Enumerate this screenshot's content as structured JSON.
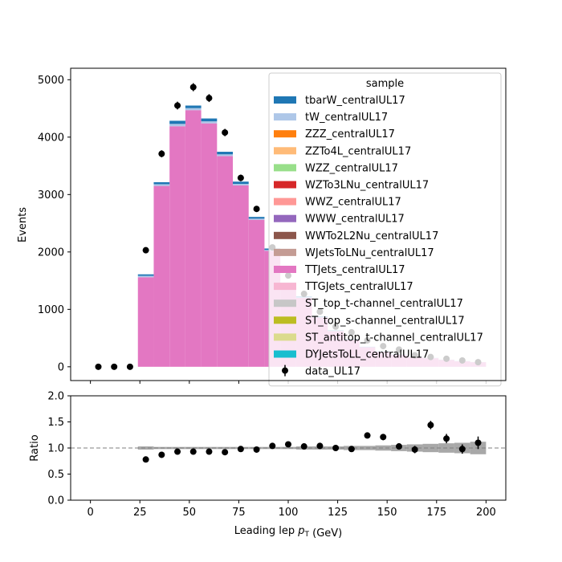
{
  "chart_data": {
    "type": "bar",
    "bin_edges": [
      24,
      32,
      40,
      48,
      56,
      64,
      72,
      80,
      88,
      96,
      104,
      112,
      120,
      128,
      136,
      144,
      152,
      160,
      168,
      176,
      184,
      192,
      200
    ],
    "stack": [
      {
        "name": "TTJets_centralUL17",
        "color": "#e377c2",
        "values": [
          1560,
          3150,
          4190,
          4470,
          4240,
          3670,
          3160,
          2560,
          2020,
          1420,
          1200,
          860,
          620,
          470,
          340,
          260,
          210,
          170,
          150,
          120,
          95,
          80
        ]
      },
      {
        "name": "tW_centralUL17",
        "color": "#aec7e8",
        "values": [
          25,
          30,
          40,
          35,
          35,
          30,
          25,
          20,
          15,
          12,
          10,
          8,
          6,
          5,
          4,
          3,
          3,
          2,
          2,
          2,
          1,
          1
        ]
      },
      {
        "name": "tbarW_centralUL17",
        "color": "#1f77b4",
        "values": [
          25,
          35,
          55,
          45,
          50,
          45,
          40,
          30,
          25,
          18,
          15,
          12,
          9,
          7,
          5,
          4,
          3,
          3,
          2,
          2,
          2,
          1
        ]
      }
    ],
    "legend": {
      "title": "sample",
      "position": "top-right",
      "entries": [
        {
          "name": "tbarW_centralUL17",
          "color": "#1f77b4"
        },
        {
          "name": "tW_centralUL17",
          "color": "#aec7e8"
        },
        {
          "name": "ZZZ_centralUL17",
          "color": "#ff7f0e"
        },
        {
          "name": "ZZTo4L_centralUL17",
          "color": "#ffbb78"
        },
        {
          "name": "WZZ_centralUL17",
          "color": "#98df8a"
        },
        {
          "name": "WZTo3LNu_centralUL17",
          "color": "#d62728"
        },
        {
          "name": "WWZ_centralUL17",
          "color": "#ff9896"
        },
        {
          "name": "WWW_centralUL17",
          "color": "#9467bd"
        },
        {
          "name": "WWTo2L2Nu_centralUL17",
          "color": "#8c564b"
        },
        {
          "name": "WJetsToLNu_centralUL17",
          "color": "#c49c94"
        },
        {
          "name": "TTJets_centralUL17",
          "color": "#e377c2"
        },
        {
          "name": "TTGJets_centralUL17",
          "color": "#f7b6d2"
        },
        {
          "name": "ST_top_t-channel_centralUL17",
          "color": "#c7c7c7"
        },
        {
          "name": "ST_top_s-channel_centralUL17",
          "color": "#bcbd22"
        },
        {
          "name": "ST_antitop_t-channel_centralUL17",
          "color": "#dbdb8d"
        },
        {
          "name": "DYJetsToLL_centralUL17",
          "color": "#17becf"
        }
      ],
      "data_entry": "data_UL17"
    },
    "data": {
      "name": "data_UL17",
      "x": [
        4,
        12,
        20,
        28,
        36,
        44,
        52,
        60,
        68,
        76,
        84,
        92,
        100,
        108,
        116,
        124,
        132,
        140,
        148,
        156,
        164,
        172,
        180,
        188,
        196
      ],
      "y": [
        0,
        0,
        0,
        2030,
        3710,
        4550,
        4870,
        4680,
        4080,
        3290,
        2750,
        2080,
        1590,
        1270,
        960,
        700,
        600,
        460,
        360,
        300,
        200,
        170,
        140,
        110,
        80
      ]
    },
    "top_panel": {
      "ylabel": "Events",
      "ylim": [
        -240,
        5200
      ],
      "yticks": [
        0,
        1000,
        2000,
        3000,
        4000,
        5000
      ]
    },
    "ratio_panel": {
      "ylabel": "Ratio",
      "ylim": [
        0,
        2
      ],
      "yticks": [
        0.0,
        0.5,
        1.0,
        1.5,
        2.0
      ],
      "yticklabels": [
        "0.0",
        "0.5",
        "1.0",
        "1.5",
        "2.0"
      ],
      "reference_line": 1.0,
      "x": [
        28,
        36,
        44,
        52,
        60,
        68,
        76,
        84,
        92,
        100,
        108,
        116,
        124,
        132,
        140,
        148,
        156,
        164,
        172,
        180,
        188,
        196
      ],
      "y": [
        0.78,
        0.87,
        0.93,
        0.93,
        0.93,
        0.92,
        0.98,
        0.97,
        1.04,
        1.07,
        1.03,
        1.04,
        1.0,
        0.98,
        1.24,
        1.21,
        1.03,
        0.97,
        1.44,
        1.18,
        0.98,
        1.1
      ],
      "yerr": [
        0.02,
        0.02,
        0.02,
        0.02,
        0.02,
        0.02,
        0.02,
        0.02,
        0.02,
        0.03,
        0.03,
        0.03,
        0.04,
        0.04,
        0.05,
        0.06,
        0.06,
        0.07,
        0.08,
        0.09,
        0.09,
        0.12
      ],
      "uncertainty": [
        0.03,
        0.02,
        0.02,
        0.02,
        0.02,
        0.02,
        0.02,
        0.02,
        0.02,
        0.02,
        0.03,
        0.03,
        0.03,
        0.04,
        0.04,
        0.05,
        0.06,
        0.07,
        0.08,
        0.09,
        0.1,
        0.12
      ]
    },
    "xlabel": "Leading lep $p_T$ (GeV)",
    "xlim": [
      -10,
      210
    ],
    "xticks": [
      0,
      25,
      50,
      75,
      100,
      125,
      150,
      175,
      200
    ],
    "xticklabels": [
      "0",
      "25",
      "50",
      "75",
      "100",
      "125",
      "150",
      "175",
      "200"
    ]
  }
}
